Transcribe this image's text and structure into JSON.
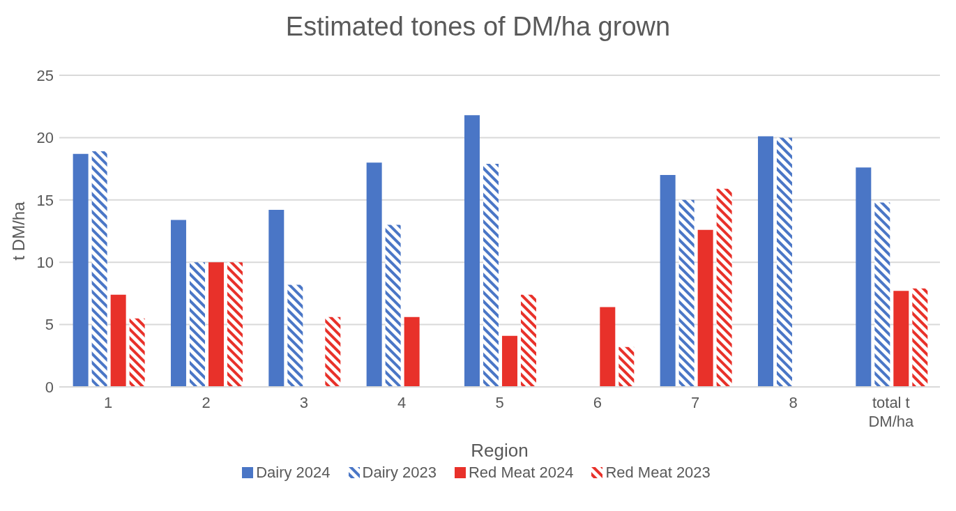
{
  "chart_data": {
    "type": "bar",
    "title": "Estimated tones of DM/ha grown",
    "xlabel": "Region",
    "ylabel": "t DM/ha",
    "categories": [
      "1",
      "2",
      "3",
      "4",
      "5",
      "6",
      "7",
      "8",
      "total t DM/ha"
    ],
    "series": [
      {
        "name": "Dairy 2024",
        "color": "#4a76c6",
        "values": [
          18.7,
          13.4,
          14.2,
          18.0,
          21.8,
          null,
          17.0,
          20.1,
          17.6
        ]
      },
      {
        "name": "Dairy 2023",
        "color": "#4a76c6",
        "values": [
          18.9,
          10,
          8.2,
          13.0,
          17.9,
          null,
          15.0,
          20.0,
          14.8
        ]
      },
      {
        "name": "Red Meat 2024",
        "color": "#e8312a",
        "values": [
          7.4,
          10,
          null,
          5.6,
          4.1,
          6.4,
          12.6,
          null,
          7.7
        ]
      },
      {
        "name": "Red Meat 2023",
        "color": "#e8312a",
        "values": [
          5.5,
          10,
          5.6,
          null,
          7.4,
          3.2,
          15.9,
          null,
          7.9
        ]
      }
    ],
    "ylim": [
      0,
      25
    ],
    "yticks": [
      0,
      5,
      10,
      15,
      20,
      25
    ],
    "grid": "y",
    "legend": "bottom"
  }
}
